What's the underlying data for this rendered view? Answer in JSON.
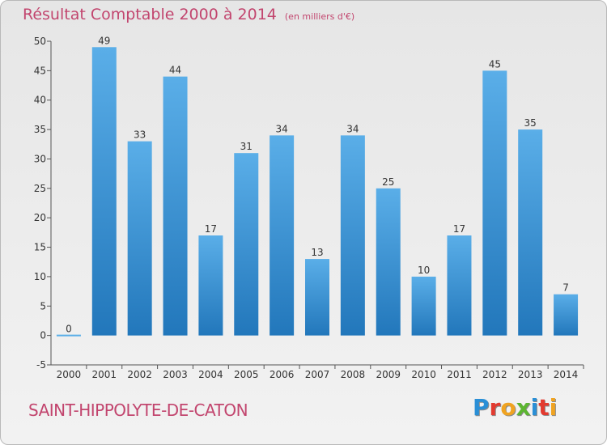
{
  "chart_data": {
    "type": "bar",
    "title": "Résultat Comptable 2000 à 2014",
    "subtitle": "(en milliers d'€)",
    "categories": [
      "2000",
      "2001",
      "2002",
      "2003",
      "2004",
      "2005",
      "2006",
      "2007",
      "2008",
      "2009",
      "2010",
      "2011",
      "2012",
      "2013",
      "2014"
    ],
    "values": [
      0,
      49,
      33,
      44,
      17,
      31,
      34,
      13,
      34,
      25,
      10,
      17,
      45,
      35,
      7
    ],
    "data_labels": [
      "0",
      "49",
      "33",
      "44",
      "17",
      "31",
      "34",
      "13",
      "34",
      "25",
      "10",
      "17",
      "45",
      "35",
      "7"
    ],
    "yticks": [
      -5,
      0,
      5,
      10,
      15,
      20,
      25,
      30,
      35,
      40,
      45,
      50
    ],
    "ylim": [
      -5,
      50
    ],
    "xlabel": "",
    "ylabel": "",
    "grid": false,
    "legend": "none",
    "bar_color_top": "#5aaee8",
    "bar_color_bottom": "#2277bb"
  },
  "footer": {
    "place": "SAINT-HIPPOLYTE-DE-CATON",
    "logo_letters": [
      {
        "char": "P",
        "color": "#2a8fd6"
      },
      {
        "char": "r",
        "color": "#e33a2f"
      },
      {
        "char": "o",
        "color": "#f0a321"
      },
      {
        "char": "x",
        "color": "#5cb531"
      },
      {
        "char": "i",
        "color": "#2a8fd6"
      },
      {
        "char": "t",
        "color": "#e33a2f"
      },
      {
        "char": "i",
        "color": "#f0a321"
      }
    ]
  }
}
